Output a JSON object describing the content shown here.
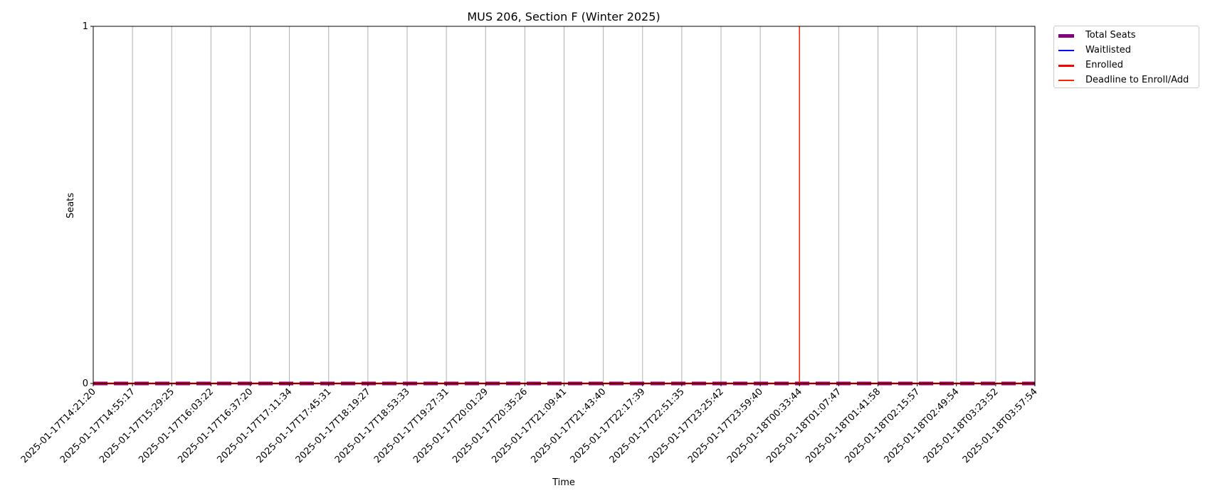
{
  "chart_data": {
    "type": "line",
    "title": "MUS 206, Section F (Winter 2025)",
    "xlabel": "Time",
    "ylabel": "Seats",
    "ylim": [
      0,
      1
    ],
    "yticks": [
      "0",
      "1"
    ],
    "grid": "vertical",
    "legend_position": "outside-top-right",
    "x": [
      "2025-01-17T14:21:20",
      "2025-01-17T14:55:17",
      "2025-01-17T15:29:25",
      "2025-01-17T16:03:22",
      "2025-01-17T16:37:20",
      "2025-01-17T17:11:34",
      "2025-01-17T17:45:31",
      "2025-01-17T18:19:27",
      "2025-01-17T18:53:33",
      "2025-01-17T19:27:31",
      "2025-01-17T20:01:29",
      "2025-01-17T20:35:26",
      "2025-01-17T21:09:41",
      "2025-01-17T21:43:40",
      "2025-01-17T22:17:39",
      "2025-01-17T22:51:35",
      "2025-01-17T23:25:42",
      "2025-01-17T23:59:40",
      "2025-01-18T00:33:44",
      "2025-01-18T01:07:47",
      "2025-01-18T01:41:58",
      "2025-01-18T02:15:57",
      "2025-01-18T02:49:54",
      "2025-01-18T03:23:52",
      "2025-01-18T03:57:54"
    ],
    "series": [
      {
        "name": "Total Seats",
        "color": "#800080",
        "style": "dashed",
        "values": [
          0,
          0,
          0,
          0,
          0,
          0,
          0,
          0,
          0,
          0,
          0,
          0,
          0,
          0,
          0,
          0,
          0,
          0,
          0,
          0,
          0,
          0,
          0,
          0,
          0
        ]
      },
      {
        "name": "Waitlisted",
        "color": "#0000ff",
        "style": "solid",
        "values": [
          0,
          0,
          0,
          0,
          0,
          0,
          0,
          0,
          0,
          0,
          0,
          0,
          0,
          0,
          0,
          0,
          0,
          0,
          0,
          0,
          0,
          0,
          0,
          0,
          0
        ]
      },
      {
        "name": "Enrolled",
        "color": "#ff0000",
        "style": "solid",
        "values": [
          0,
          0,
          0,
          0,
          0,
          0,
          0,
          0,
          0,
          0,
          0,
          0,
          0,
          0,
          0,
          0,
          0,
          0,
          0,
          0,
          0,
          0,
          0,
          0,
          0
        ]
      }
    ],
    "annotations": [
      {
        "name": "Deadline to Enroll/Add",
        "color": "#ff2200",
        "type": "vertical-line",
        "x_index": 18
      }
    ]
  }
}
